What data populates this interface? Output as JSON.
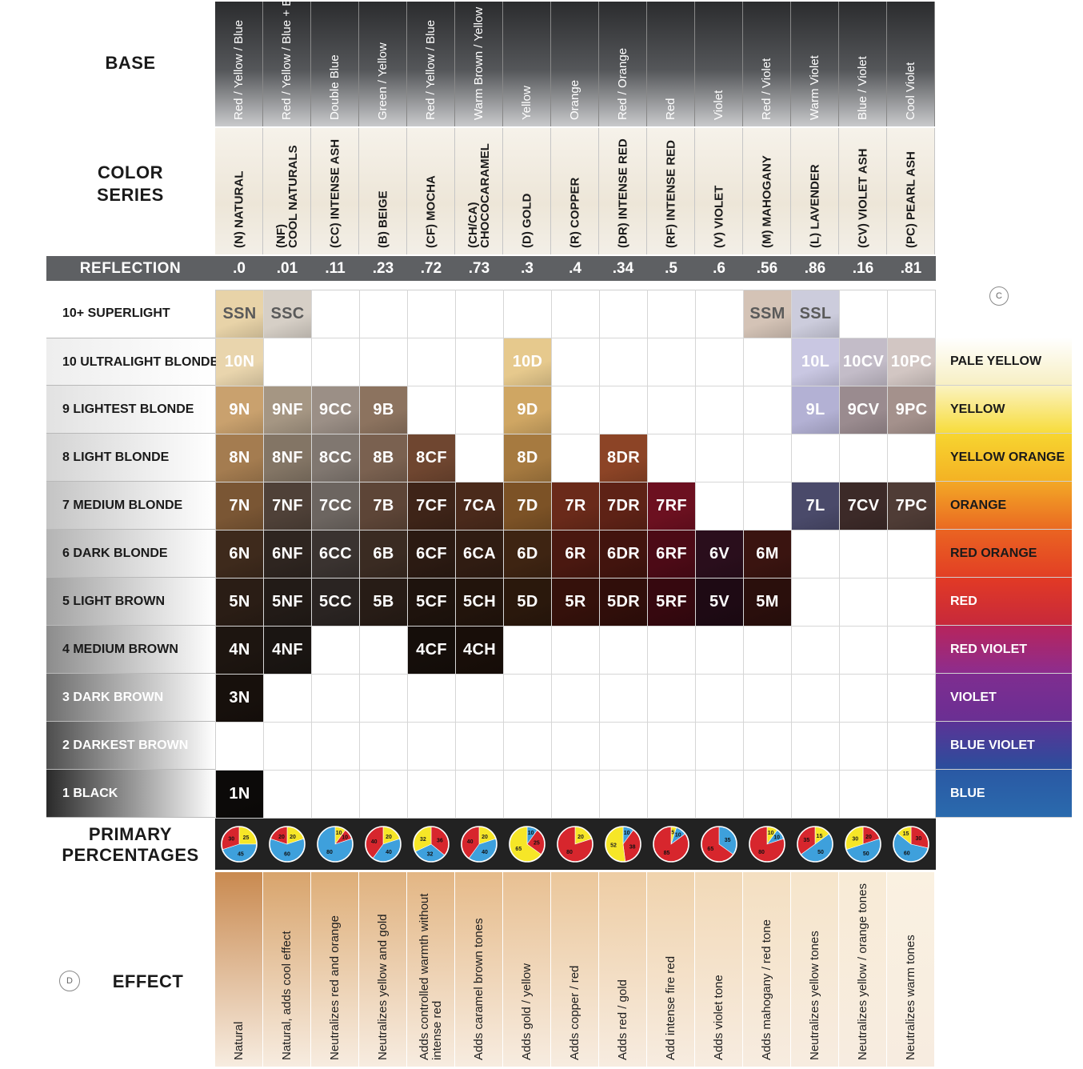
{
  "labels": {
    "base": "BASE",
    "color_series": [
      "COLOR",
      "SERIES"
    ],
    "reflection": "REFLECTION",
    "primary_percentages": [
      "PRIMARY",
      "PERCENTAGES"
    ],
    "effect": "EFFECT",
    "mark_c": "C",
    "mark_d": "D"
  },
  "columns": [
    {
      "base": "Red / Yellow / Blue",
      "series": [
        "(N) NATURAL"
      ],
      "reflection": ".0",
      "effect": "Natural",
      "effect_color": "#c98a50",
      "pie": [
        {
          "c": "yellow",
          "v": 25
        },
        {
          "c": "blue",
          "v": 45
        },
        {
          "c": "red",
          "v": 30
        }
      ]
    },
    {
      "base": "Red / Yellow / Blue + Blue",
      "series": [
        "(NF)",
        "COOL NATURALS"
      ],
      "reflection": ".01",
      "effect": "Natural, adds cool effect",
      "effect_color": "#d8a46c",
      "pie": [
        {
          "c": "yellow",
          "v": 20
        },
        {
          "c": "blue",
          "v": 60
        },
        {
          "c": "red",
          "v": 20
        }
      ]
    },
    {
      "base": "Double Blue",
      "series": [
        "(CC) INTENSE ASH"
      ],
      "reflection": ".11",
      "effect": "Neutralizes red and orange",
      "effect_color": "#deae78",
      "pie": [
        {
          "c": "yellow",
          "v": 10
        },
        {
          "c": "red",
          "v": 10
        },
        {
          "c": "blue",
          "v": 80
        }
      ]
    },
    {
      "base": "Green / Yellow",
      "series": [
        "(B) BEIGE"
      ],
      "reflection": ".23",
      "effect": "Neutralizes yellow and gold",
      "effect_color": "#e0b27f",
      "pie": [
        {
          "c": "yellow",
          "v": 20
        },
        {
          "c": "blue",
          "v": 40
        },
        {
          "c": "red",
          "v": 40
        }
      ]
    },
    {
      "base": "Red / Yellow / Blue",
      "series": [
        "(CF) MOCHA"
      ],
      "reflection": ".72",
      "effect": "Adds controlled warmth without intense red",
      "effect_color": "#e3b684",
      "pie": [
        {
          "c": "red",
          "v": 36
        },
        {
          "c": "blue",
          "v": 32
        },
        {
          "c": "yellow",
          "v": 32
        }
      ]
    },
    {
      "base": "Warm Brown / Yellow",
      "series": [
        "(CH/CA)",
        "CHOCOCARAMEL"
      ],
      "reflection": ".73",
      "effect": "Adds caramel brown tones",
      "effect_color": "#e6bb8a",
      "pie": [
        {
          "c": "yellow",
          "v": 20
        },
        {
          "c": "blue",
          "v": 40
        },
        {
          "c": "red",
          "v": 40
        }
      ]
    },
    {
      "base": "Yellow",
      "series": [
        "(D) GOLD"
      ],
      "reflection": ".3",
      "effect": "Adds gold / yellow",
      "effect_color": "#e8c092",
      "pie": [
        {
          "c": "blue",
          "v": 10
        },
        {
          "c": "red",
          "v": 25
        },
        {
          "c": "yellow",
          "v": 65
        }
      ]
    },
    {
      "base": "Orange",
      "series": [
        "(R) COPPER"
      ],
      "reflection": ".4",
      "effect": "Adds copper / red",
      "effect_color": "#ebc79b",
      "pie": [
        {
          "c": "yellow",
          "v": 20
        },
        {
          "c": "red",
          "v": 80
        }
      ]
    },
    {
      "base": "Red / Orange",
      "series": [
        "(DR) INTENSE RED"
      ],
      "reflection": ".34",
      "effect": "Adds red / gold",
      "effect_color": "#eecda4",
      "pie": [
        {
          "c": "blue",
          "v": 10
        },
        {
          "c": "red",
          "v": 38
        },
        {
          "c": "yellow",
          "v": 52
        }
      ]
    },
    {
      "base": "Red",
      "series": [
        "(RF) INTENSE RED"
      ],
      "reflection": ".5",
      "effect": "Add intense fire red",
      "effect_color": "#f0d3ad",
      "pie": [
        {
          "c": "yellow",
          "v": 5
        },
        {
          "c": "blue",
          "v": 10
        },
        {
          "c": "red",
          "v": 85
        }
      ]
    },
    {
      "base": "Violet",
      "series": [
        "(V) VIOLET"
      ],
      "reflection": ".6",
      "effect": "Adds violet tone",
      "effect_color": "#f2d9b7",
      "pie": [
        {
          "c": "blue",
          "v": 35
        },
        {
          "c": "red",
          "v": 65
        }
      ]
    },
    {
      "base": "Red / Violet",
      "series": [
        "(M) MAHOGANY"
      ],
      "reflection": ".56",
      "effect": "Adds mahogany / red tone",
      "effect_color": "#f4dfc1",
      "pie": [
        {
          "c": "yellow",
          "v": 10
        },
        {
          "c": "blue",
          "v": 10
        },
        {
          "c": "red",
          "v": 80
        }
      ]
    },
    {
      "base": "Warm Violet",
      "series": [
        "(L) LAVENDER"
      ],
      "reflection": ".86",
      "effect": "Neutralizes yellow tones",
      "effect_color": "#f6e5cb",
      "pie": [
        {
          "c": "yellow",
          "v": 15
        },
        {
          "c": "blue",
          "v": 50
        },
        {
          "c": "red",
          "v": 35
        }
      ]
    },
    {
      "base": "Blue / Violet",
      "series": [
        "(CV) VIOLET ASH"
      ],
      "reflection": ".16",
      "effect": "Neutralizes yellow / orange tones",
      "effect_color": "#f8ebd6",
      "pie": [
        {
          "c": "red",
          "v": 20
        },
        {
          "c": "blue",
          "v": 50
        },
        {
          "c": "yellow",
          "v": 30
        }
      ]
    },
    {
      "base": "Cool Violet",
      "series": [
        "(PC) PEARL ASH"
      ],
      "reflection": ".81",
      "effect": "Neutralizes warm tones",
      "effect_color": "#faf1e1",
      "pie": [
        {
          "c": "red",
          "v": 30
        },
        {
          "c": "blue",
          "v": 60
        },
        {
          "c": "yellow",
          "v": 15
        }
      ]
    }
  ],
  "levels": [
    {
      "label": "10+ SUPERLIGHT",
      "shade": "#ffffff"
    },
    {
      "label": "10 ULTRALIGHT BLONDE",
      "shade": "#eeeeee"
    },
    {
      "label": "9  LIGHTEST BLONDE",
      "shade": "#e2e2e2"
    },
    {
      "label": "8  LIGHT BLONDE",
      "shade": "#d4d4d4"
    },
    {
      "label": "7  MEDIUM BLONDE",
      "shade": "#c4c4c4"
    },
    {
      "label": "6  DARK BLONDE",
      "shade": "#b4b4b4"
    },
    {
      "label": "5  LIGHT BROWN",
      "shade": "#a2a2a2"
    },
    {
      "label": "4  MEDIUM BROWN",
      "shade": "#8c8c8c"
    },
    {
      "label": "3  DARK BROWN",
      "shade": "#6e6e6e"
    },
    {
      "label": "2  DARKEST BROWN",
      "shade": "#4e4e4e"
    },
    {
      "label": "1  BLACK",
      "shade": "#2a2a2a"
    }
  ],
  "swatches": [
    {
      "row": 0,
      "col": 0,
      "text": "SSN",
      "color": "#e8d3a8",
      "dark": true
    },
    {
      "row": 0,
      "col": 1,
      "text": "SSC",
      "color": "#d6cfc6",
      "dark": true
    },
    {
      "row": 0,
      "col": 11,
      "text": "SSM",
      "color": "#d4c3b6",
      "dark": true
    },
    {
      "row": 0,
      "col": 12,
      "text": "SSL",
      "color": "#ccccdc",
      "dark": true
    },
    {
      "row": 1,
      "col": 0,
      "text": "10N",
      "color": "#e9d5ad"
    },
    {
      "row": 1,
      "col": 6,
      "text": "10D",
      "color": "#e6c98d"
    },
    {
      "row": 1,
      "col": 12,
      "text": "10L",
      "color": "#c9c7e2"
    },
    {
      "row": 1,
      "col": 13,
      "text": "10CV",
      "color": "#c3bcc8"
    },
    {
      "row": 1,
      "col": 14,
      "text": "10PC",
      "color": "#d2c6c3"
    },
    {
      "row": 2,
      "col": 0,
      "text": "9N",
      "color": "#c9a16e"
    },
    {
      "row": 2,
      "col": 1,
      "text": "9NF",
      "color": "#a59683"
    },
    {
      "row": 2,
      "col": 2,
      "text": "9CC",
      "color": "#9b8f86"
    },
    {
      "row": 2,
      "col": 3,
      "text": "9B",
      "color": "#8c735f"
    },
    {
      "row": 2,
      "col": 6,
      "text": "9D",
      "color": "#cfa663"
    },
    {
      "row": 2,
      "col": 12,
      "text": "9L",
      "color": "#b3b1d4"
    },
    {
      "row": 2,
      "col": 13,
      "text": "9CV",
      "color": "#9a8b8f"
    },
    {
      "row": 2,
      "col": 14,
      "text": "9PC",
      "color": "#a4918c"
    },
    {
      "row": 3,
      "col": 0,
      "text": "8N",
      "color": "#a47c50"
    },
    {
      "row": 3,
      "col": 1,
      "text": "8NF",
      "color": "#837565"
    },
    {
      "row": 3,
      "col": 2,
      "text": "8CC",
      "color": "#807770"
    },
    {
      "row": 3,
      "col": 3,
      "text": "8B",
      "color": "#7a6150"
    },
    {
      "row": 3,
      "col": 4,
      "text": "8CF",
      "color": "#6f4630"
    },
    {
      "row": 3,
      "col": 6,
      "text": "8D",
      "color": "#a67a40"
    },
    {
      "row": 3,
      "col": 8,
      "text": "8DR",
      "color": "#8c4426"
    },
    {
      "row": 4,
      "col": 0,
      "text": "7N",
      "color": "#7a5634"
    },
    {
      "row": 4,
      "col": 1,
      "text": "7NF",
      "color": "#4f4138"
    },
    {
      "row": 4,
      "col": 2,
      "text": "7CC",
      "color": "#6c6560"
    },
    {
      "row": 4,
      "col": 3,
      "text": "7B",
      "color": "#5d4537"
    },
    {
      "row": 4,
      "col": 4,
      "text": "7CF",
      "color": "#3e2418"
    },
    {
      "row": 4,
      "col": 5,
      "text": "7CA",
      "color": "#4a2a1b"
    },
    {
      "row": 4,
      "col": 6,
      "text": "7D",
      "color": "#7c5226"
    },
    {
      "row": 4,
      "col": 7,
      "text": "7R",
      "color": "#6a2a1a"
    },
    {
      "row": 4,
      "col": 8,
      "text": "7DR",
      "color": "#5e2216"
    },
    {
      "row": 4,
      "col": 9,
      "text": "7RF",
      "color": "#6c1020"
    },
    {
      "row": 4,
      "col": 12,
      "text": "7L",
      "color": "#4a4a6a"
    },
    {
      "row": 4,
      "col": 13,
      "text": "7CV",
      "color": "#3c2a28"
    },
    {
      "row": 4,
      "col": 14,
      "text": "7PC",
      "color": "#4f3c36"
    },
    {
      "row": 5,
      "col": 0,
      "text": "6N",
      "color": "#3e2a1c"
    },
    {
      "row": 5,
      "col": 1,
      "text": "6NF",
      "color": "#2e2520"
    },
    {
      "row": 5,
      "col": 2,
      "text": "6CC",
      "color": "#3a3330"
    },
    {
      "row": 5,
      "col": 3,
      "text": "6B",
      "color": "#3a2b22"
    },
    {
      "row": 5,
      "col": 4,
      "text": "6CF",
      "color": "#2b1a12"
    },
    {
      "row": 5,
      "col": 5,
      "text": "6CA",
      "color": "#301c12"
    },
    {
      "row": 5,
      "col": 6,
      "text": "6D",
      "color": "#3e2412"
    },
    {
      "row": 5,
      "col": 7,
      "text": "6R",
      "color": "#4a1810"
    },
    {
      "row": 5,
      "col": 8,
      "text": "6DR",
      "color": "#42140e"
    },
    {
      "row": 5,
      "col": 9,
      "text": "6RF",
      "color": "#4c0a16"
    },
    {
      "row": 5,
      "col": 10,
      "text": "6V",
      "color": "#2a0e1c"
    },
    {
      "row": 5,
      "col": 11,
      "text": "6M",
      "color": "#3a1410"
    },
    {
      "row": 6,
      "col": 0,
      "text": "5N",
      "color": "#2a1d15"
    },
    {
      "row": 6,
      "col": 1,
      "text": "5NF",
      "color": "#221b17"
    },
    {
      "row": 6,
      "col": 2,
      "text": "5CC",
      "color": "#2a2422"
    },
    {
      "row": 6,
      "col": 3,
      "text": "5B",
      "color": "#271c16"
    },
    {
      "row": 6,
      "col": 4,
      "text": "5CF",
      "color": "#1e130d"
    },
    {
      "row": 6,
      "col": 5,
      "text": "5CH",
      "color": "#22140c"
    },
    {
      "row": 6,
      "col": 6,
      "text": "5D",
      "color": "#2a180c"
    },
    {
      "row": 6,
      "col": 7,
      "text": "5R",
      "color": "#35110b"
    },
    {
      "row": 6,
      "col": 8,
      "text": "5DR",
      "color": "#300e0a"
    },
    {
      "row": 6,
      "col": 9,
      "text": "5RF",
      "color": "#36080f"
    },
    {
      "row": 6,
      "col": 10,
      "text": "5V",
      "color": "#1e0a14"
    },
    {
      "row": 6,
      "col": 11,
      "text": "5M",
      "color": "#2a0f0c"
    },
    {
      "row": 7,
      "col": 0,
      "text": "4N",
      "color": "#1d1510"
    },
    {
      "row": 7,
      "col": 1,
      "text": "4NF",
      "color": "#1a1512"
    },
    {
      "row": 7,
      "col": 4,
      "text": "4CF",
      "color": "#150e0a"
    },
    {
      "row": 7,
      "col": 5,
      "text": "4CH",
      "color": "#180e09"
    },
    {
      "row": 8,
      "col": 0,
      "text": "3N",
      "color": "#17100c"
    },
    {
      "row": 10,
      "col": 0,
      "text": "1N",
      "color": "#0c0a09"
    }
  ],
  "tones": [
    {
      "row": 1,
      "label": "PALE YELLOW",
      "top": "#ffffff",
      "bottom": "#f7efc4",
      "textColor": "#1a1a1a"
    },
    {
      "row": 2,
      "label": "YELLOW",
      "top": "#fbf3c0",
      "bottom": "#f7dc3c",
      "textColor": "#1a1a1a"
    },
    {
      "row": 3,
      "label": "YELLOW ORANGE",
      "top": "#f7d530",
      "bottom": "#f4b224",
      "textColor": "#1a1a1a"
    },
    {
      "row": 4,
      "label": "ORANGE",
      "top": "#f3a826",
      "bottom": "#ea6a22",
      "textColor": "#1a1a1a"
    },
    {
      "row": 5,
      "label": "RED ORANGE",
      "top": "#ea6422",
      "bottom": "#e23f24",
      "textColor": "#1a1a1a"
    },
    {
      "row": 6,
      "label": "RED",
      "top": "#e23a25",
      "bottom": "#c7293b",
      "textColor": "#ffffff"
    },
    {
      "row": 7,
      "label": "RED VIOLET",
      "top": "#b7245c",
      "bottom": "#8d2d8e",
      "textColor": "#ffffff"
    },
    {
      "row": 8,
      "label": "VIOLET",
      "top": "#7f2d90",
      "bottom": "#6a2f93",
      "textColor": "#ffffff"
    },
    {
      "row": 9,
      "label": "BLUE VIOLET",
      "top": "#5b3396",
      "bottom": "#2a4e9c",
      "textColor": "#ffffff"
    },
    {
      "row": 10,
      "label": "BLUE",
      "top": "#2a59a4",
      "bottom": "#2a6aad",
      "textColor": "#ffffff"
    }
  ],
  "pie_colors": {
    "yellow": "#f6e627",
    "blue": "#3ea0dc",
    "red": "#d7262d"
  }
}
